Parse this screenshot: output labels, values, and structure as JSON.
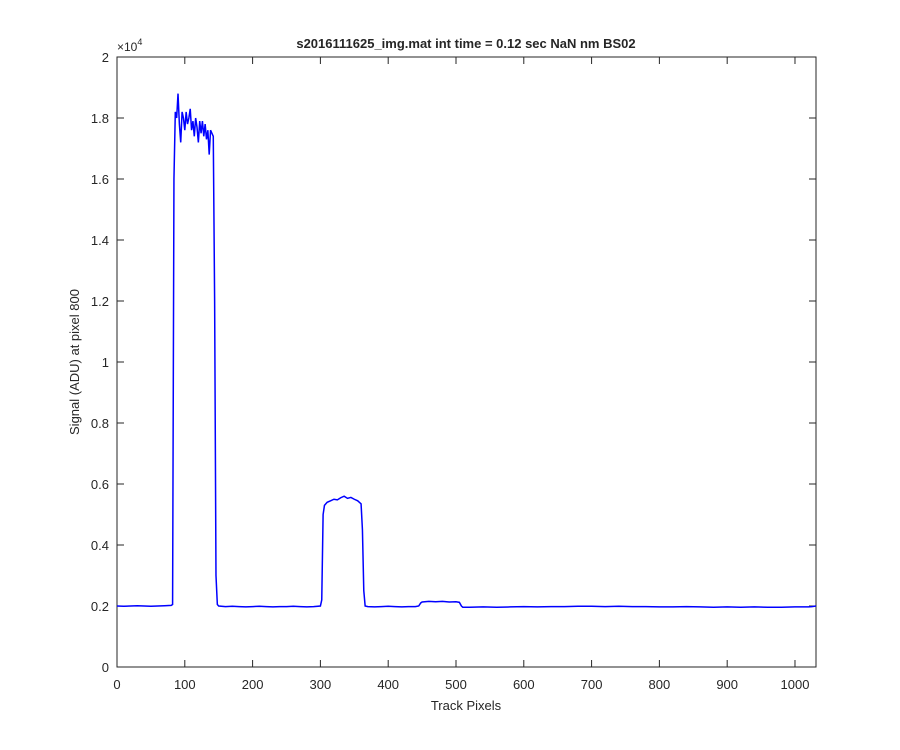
{
  "chart_data": {
    "type": "line",
    "title": "s2016111625_img.mat int time = 0.12 sec  NaN nm BS02",
    "xlabel": "Track Pixels",
    "ylabel": "Signal (ADU) at pixel 800",
    "y_multiplier": {
      "base": "×10",
      "exponent": "4"
    },
    "xlim": [
      0,
      1031
    ],
    "ylim": [
      0,
      2
    ],
    "xticks": [
      0,
      100,
      200,
      300,
      400,
      500,
      600,
      700,
      800,
      900,
      1000
    ],
    "yticks": [
      0,
      0.2,
      0.4,
      0.6,
      0.8,
      1,
      1.2,
      1.4,
      1.6,
      1.8,
      2
    ],
    "grid": false,
    "series": [
      {
        "name": "signal",
        "color": "#0000ff",
        "x": [
          0,
          10,
          20,
          30,
          40,
          50,
          60,
          70,
          80,
          82,
          84,
          86,
          88,
          90,
          92,
          94,
          96,
          98,
          100,
          102,
          104,
          106,
          108,
          110,
          112,
          114,
          116,
          118,
          120,
          122,
          124,
          126,
          128,
          130,
          132,
          134,
          136,
          138,
          140,
          142,
          144,
          146,
          148,
          150,
          160,
          170,
          180,
          190,
          200,
          210,
          220,
          230,
          240,
          250,
          260,
          270,
          280,
          290,
          300,
          302,
          304,
          306,
          310,
          315,
          320,
          325,
          330,
          335,
          340,
          345,
          350,
          355,
          360,
          362,
          364,
          366,
          370,
          380,
          390,
          400,
          410,
          420,
          430,
          440,
          445,
          448,
          450,
          460,
          470,
          480,
          490,
          500,
          505,
          508,
          510,
          520,
          540,
          560,
          580,
          600,
          620,
          640,
          660,
          680,
          700,
          720,
          740,
          760,
          780,
          800,
          820,
          840,
          860,
          880,
          900,
          920,
          940,
          960,
          980,
          1000,
          1020,
          1025,
          1031
        ],
        "values": [
          0.2,
          0.199,
          0.2,
          0.201,
          0.2,
          0.199,
          0.2,
          0.201,
          0.202,
          0.205,
          1.6,
          1.82,
          1.8,
          1.88,
          1.78,
          1.72,
          1.82,
          1.8,
          1.76,
          1.82,
          1.78,
          1.8,
          1.83,
          1.76,
          1.79,
          1.74,
          1.8,
          1.77,
          1.72,
          1.79,
          1.75,
          1.79,
          1.74,
          1.78,
          1.73,
          1.76,
          1.68,
          1.76,
          1.75,
          1.74,
          1.2,
          0.3,
          0.205,
          0.2,
          0.198,
          0.199,
          0.198,
          0.197,
          0.198,
          0.199,
          0.198,
          0.197,
          0.198,
          0.198,
          0.199,
          0.198,
          0.197,
          0.198,
          0.2,
          0.22,
          0.5,
          0.53,
          0.54,
          0.545,
          0.55,
          0.548,
          0.555,
          0.56,
          0.553,
          0.556,
          0.55,
          0.545,
          0.535,
          0.45,
          0.25,
          0.2,
          0.198,
          0.197,
          0.198,
          0.199,
          0.198,
          0.197,
          0.198,
          0.198,
          0.2,
          0.21,
          0.213,
          0.215,
          0.214,
          0.215,
          0.213,
          0.214,
          0.212,
          0.2,
          0.196,
          0.196,
          0.197,
          0.196,
          0.197,
          0.198,
          0.197,
          0.198,
          0.198,
          0.199,
          0.199,
          0.198,
          0.199,
          0.198,
          0.198,
          0.197,
          0.197,
          0.198,
          0.197,
          0.196,
          0.197,
          0.196,
          0.197,
          0.196,
          0.196,
          0.197,
          0.197,
          0.198,
          0.2
        ]
      }
    ]
  }
}
